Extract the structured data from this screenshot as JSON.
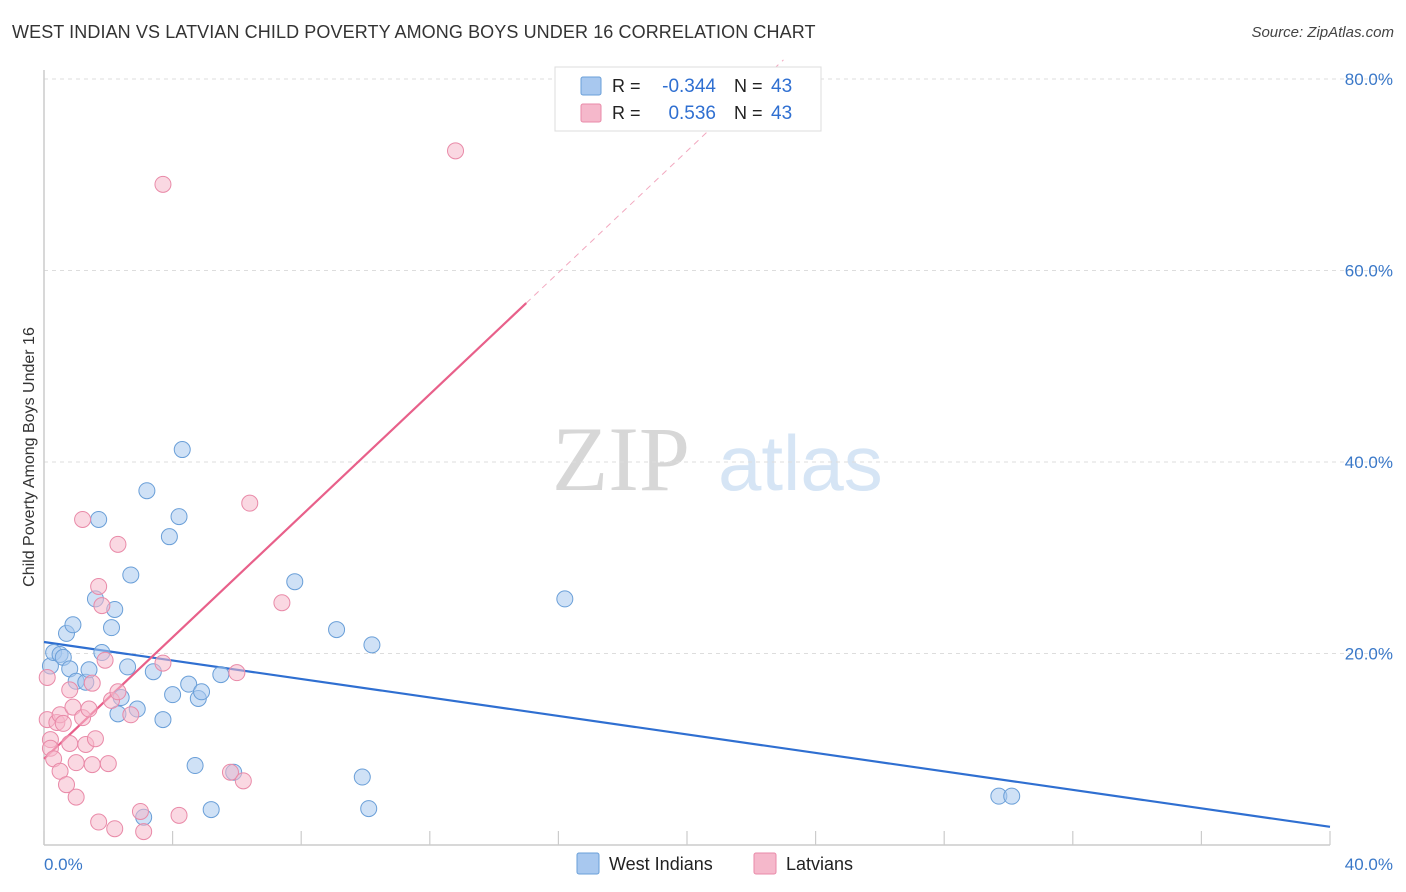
{
  "header": {
    "title": "WEST INDIAN VS LATVIAN CHILD POVERTY AMONG BOYS UNDER 16 CORRELATION CHART",
    "source": "Source: ZipAtlas.com"
  },
  "watermark": {
    "zip": "ZIP",
    "atlas": "atlas"
  },
  "stats": {
    "west_indians": {
      "r_label": "R =",
      "r_value": "-0.344",
      "n_label": "N =",
      "n_value": "43"
    },
    "latvians": {
      "r_label": "R =",
      "r_value": "0.536",
      "n_label": "N =",
      "n_value": "43"
    }
  },
  "colors": {
    "west_indians_fill": "#a8c8ef",
    "west_indians_stroke": "#6a9fd8",
    "west_indians_line": "#2f6fd1",
    "latvians_fill": "#f5b8cb",
    "latvians_stroke": "#e98aa8",
    "latvians_line": "#e8608a",
    "tick_label": "#3a78c8",
    "grid": "#dddddd"
  },
  "chart_data": {
    "type": "scatter",
    "title": "WEST INDIAN VS LATVIAN CHILD POVERTY AMONG BOYS UNDER 16 CORRELATION CHART",
    "xlabel": "",
    "ylabel": "Child Poverty Among Boys Under 16",
    "xlim": [
      0,
      40
    ],
    "ylim": [
      0,
      80
    ],
    "x_tick_labels": [
      {
        "value": 0,
        "label": "0.0%"
      },
      {
        "value": 40,
        "label": "40.0%"
      }
    ],
    "y_tick_labels": [
      {
        "value": 20,
        "label": "20.0%"
      },
      {
        "value": 40,
        "label": "40.0%"
      },
      {
        "value": 60,
        "label": "60.0%"
      },
      {
        "value": 80,
        "label": "80.0%"
      }
    ],
    "legend_position": "bottom-center",
    "series": [
      {
        "name": "West Indians",
        "points": [
          [
            0.2,
            18.7
          ],
          [
            0.3,
            20.1
          ],
          [
            0.5,
            19.9
          ],
          [
            0.6,
            19.6
          ],
          [
            0.7,
            22.1
          ],
          [
            0.8,
            18.4
          ],
          [
            0.9,
            23.0
          ],
          [
            1.0,
            17.1
          ],
          [
            1.3,
            17.0
          ],
          [
            1.4,
            18.3
          ],
          [
            1.6,
            25.7
          ],
          [
            1.7,
            34.0
          ],
          [
            1.8,
            20.1
          ],
          [
            2.1,
            22.7
          ],
          [
            2.2,
            24.6
          ],
          [
            2.3,
            13.7
          ],
          [
            2.4,
            15.4
          ],
          [
            2.6,
            18.6
          ],
          [
            2.7,
            28.2
          ],
          [
            2.9,
            14.2
          ],
          [
            3.1,
            2.9
          ],
          [
            3.2,
            37.0
          ],
          [
            3.4,
            18.1
          ],
          [
            3.7,
            13.1
          ],
          [
            3.9,
            32.2
          ],
          [
            4.0,
            15.7
          ],
          [
            4.2,
            34.3
          ],
          [
            4.3,
            41.3
          ],
          [
            4.5,
            16.8
          ],
          [
            4.7,
            8.3
          ],
          [
            4.8,
            15.3
          ],
          [
            4.9,
            16.0
          ],
          [
            5.2,
            3.7
          ],
          [
            5.5,
            17.8
          ],
          [
            5.9,
            7.6
          ],
          [
            7.8,
            27.5
          ],
          [
            9.1,
            22.5
          ],
          [
            9.9,
            7.1
          ],
          [
            10.1,
            3.8
          ],
          [
            10.2,
            20.9
          ],
          [
            16.2,
            25.7
          ],
          [
            29.7,
            5.1
          ],
          [
            30.1,
            5.1
          ]
        ]
      },
      {
        "name": "Latvians",
        "points": [
          [
            0.1,
            17.5
          ],
          [
            0.1,
            13.1
          ],
          [
            0.2,
            11.0
          ],
          [
            0.2,
            10.1
          ],
          [
            0.3,
            9.0
          ],
          [
            0.4,
            12.8
          ],
          [
            0.5,
            13.6
          ],
          [
            0.5,
            7.7
          ],
          [
            0.6,
            12.7
          ],
          [
            0.7,
            6.3
          ],
          [
            0.8,
            16.2
          ],
          [
            0.8,
            10.6
          ],
          [
            0.9,
            14.4
          ],
          [
            1.0,
            5.0
          ],
          [
            1.0,
            8.6
          ],
          [
            1.2,
            34.0
          ],
          [
            1.2,
            13.3
          ],
          [
            1.3,
            10.5
          ],
          [
            1.4,
            14.2
          ],
          [
            1.5,
            16.9
          ],
          [
            1.5,
            8.4
          ],
          [
            1.6,
            11.1
          ],
          [
            1.7,
            2.4
          ],
          [
            1.7,
            27.0
          ],
          [
            1.8,
            25.0
          ],
          [
            1.9,
            19.3
          ],
          [
            2.0,
            8.5
          ],
          [
            2.1,
            15.1
          ],
          [
            2.2,
            1.7
          ],
          [
            2.3,
            31.4
          ],
          [
            2.3,
            16.0
          ],
          [
            2.7,
            13.6
          ],
          [
            3.0,
            3.5
          ],
          [
            3.1,
            1.4
          ],
          [
            3.7,
            69.0
          ],
          [
            3.7,
            19.0
          ],
          [
            4.2,
            3.1
          ],
          [
            5.8,
            7.6
          ],
          [
            6.0,
            18.0
          ],
          [
            6.2,
            6.7
          ],
          [
            6.4,
            35.7
          ],
          [
            7.4,
            25.3
          ],
          [
            12.8,
            72.5
          ]
        ]
      }
    ],
    "trend_lines": [
      {
        "series": "West Indians",
        "x": [
          0,
          40
        ],
        "y": [
          21.2,
          1.9
        ],
        "style": "solid"
      },
      {
        "series": "Latvians",
        "x": [
          0,
          15
        ],
        "y": [
          9.0,
          56.6
        ],
        "style": "solid"
      },
      {
        "series": "Latvians",
        "x": [
          15,
          23
        ],
        "y": [
          56.6,
          82.0
        ],
        "style": "dashed"
      }
    ]
  }
}
